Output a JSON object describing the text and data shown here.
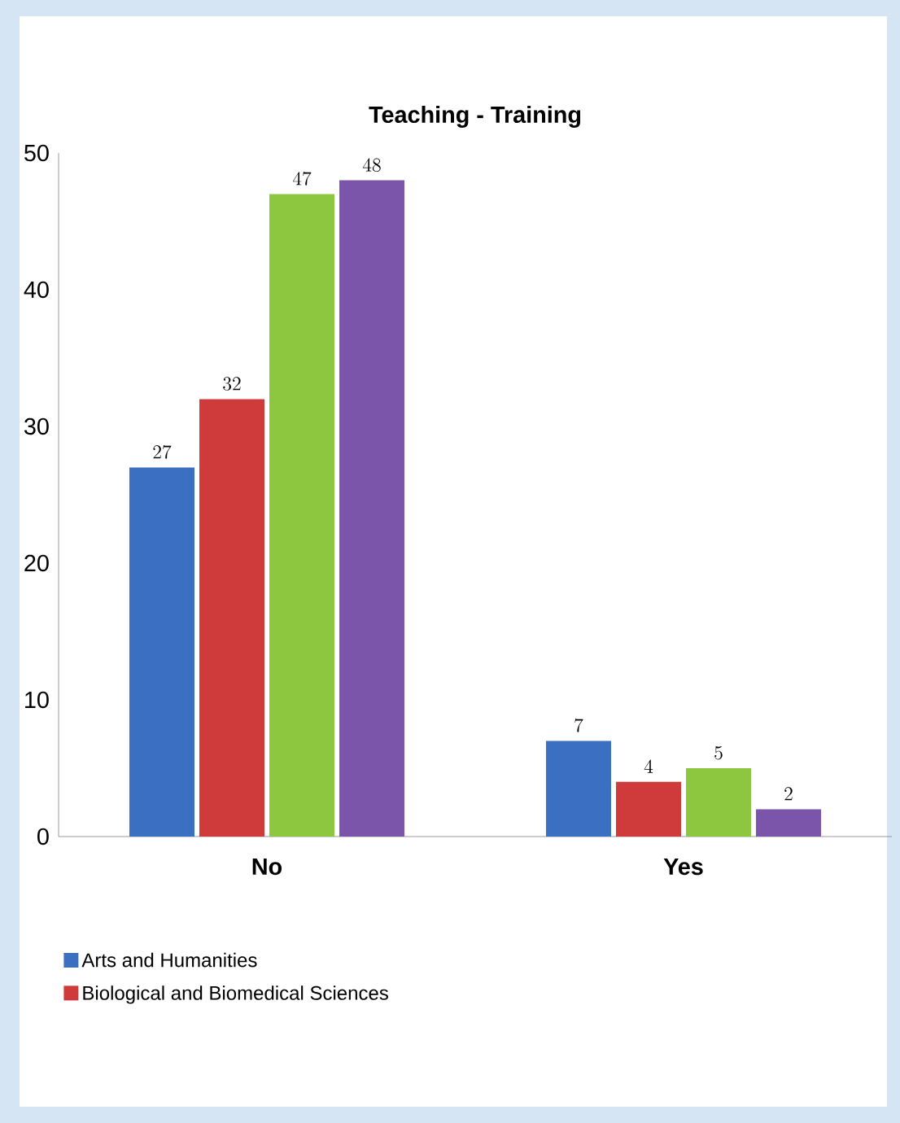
{
  "chart_data": {
    "type": "bar",
    "title": "Teaching -  Training",
    "categories": [
      "No",
      "Yes"
    ],
    "series": [
      {
        "name": "Arts and Humanities",
        "color": "#3b6fc1",
        "values": [
          27,
          7
        ]
      },
      {
        "name": "Biological and Biomedical Sciences",
        "color": "#cf3b3b",
        "values": [
          32,
          4
        ]
      },
      {
        "color": "#8dc63f",
        "values": [
          47,
          5
        ]
      },
      {
        "color": "#7b55a9",
        "values": [
          48,
          2
        ]
      }
    ],
    "ylim": [
      0,
      50
    ],
    "yticks": [
      0,
      10,
      20,
      30,
      40,
      50
    ],
    "data_labels": true,
    "grid": false,
    "legend": "bottom"
  }
}
